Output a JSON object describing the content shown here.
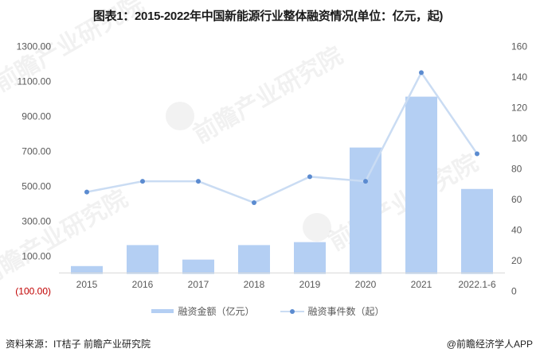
{
  "title": "图表1：2015-2022年中国新能源行业整体融资情况(单位：亿元，起)",
  "watermarks": [
    "前瞻产业研究院",
    "前瞻产业研究院",
    "前瞻产业研究院",
    "前瞻产业研究院"
  ],
  "legend": {
    "bar_label": "融资金额（亿元）",
    "line_label": "融资事件数（起）"
  },
  "footer": {
    "source": "资料来源：IT桔子 前瞻产业研究院",
    "credit": "@前瞻经济学人APP"
  },
  "colors": {
    "bar": "#b4cff3",
    "line": "#cadcf3",
    "marker": "#5b8bd0",
    "negative_label": "#c00000",
    "axis_label": "#595959"
  },
  "chart_data": {
    "type": "bar+line",
    "title": "图表1：2015-2022年中国新能源行业整体融资情况(单位：亿元，起)",
    "categories": [
      "2015",
      "2016",
      "2017",
      "2018",
      "2019",
      "2020",
      "2021",
      "2022.1-6"
    ],
    "series": [
      {
        "name": "融资金额（亿元）",
        "type": "bar",
        "axis": "left",
        "values": [
          45,
          165,
          82,
          165,
          182,
          723,
          1014,
          486
        ]
      },
      {
        "name": "融资事件数（起）",
        "type": "line",
        "axis": "right",
        "values": [
          65,
          72,
          72,
          58,
          75,
          72,
          143,
          90
        ]
      }
    ],
    "left_axis": {
      "ticks": [
        "1300.00",
        "1100.00",
        "900.00",
        "700.00",
        "500.00",
        "300.00",
        "100.00",
        "(100.00)"
      ],
      "ylim": [
        -100,
        1300
      ]
    },
    "right_axis": {
      "ticks": [
        "160",
        "140",
        "120",
        "100",
        "80",
        "60",
        "40",
        "20",
        "0"
      ],
      "ylim": [
        0,
        160
      ]
    },
    "xlabel": "",
    "ylabel": "",
    "grid": false,
    "legend_position": "bottom"
  }
}
